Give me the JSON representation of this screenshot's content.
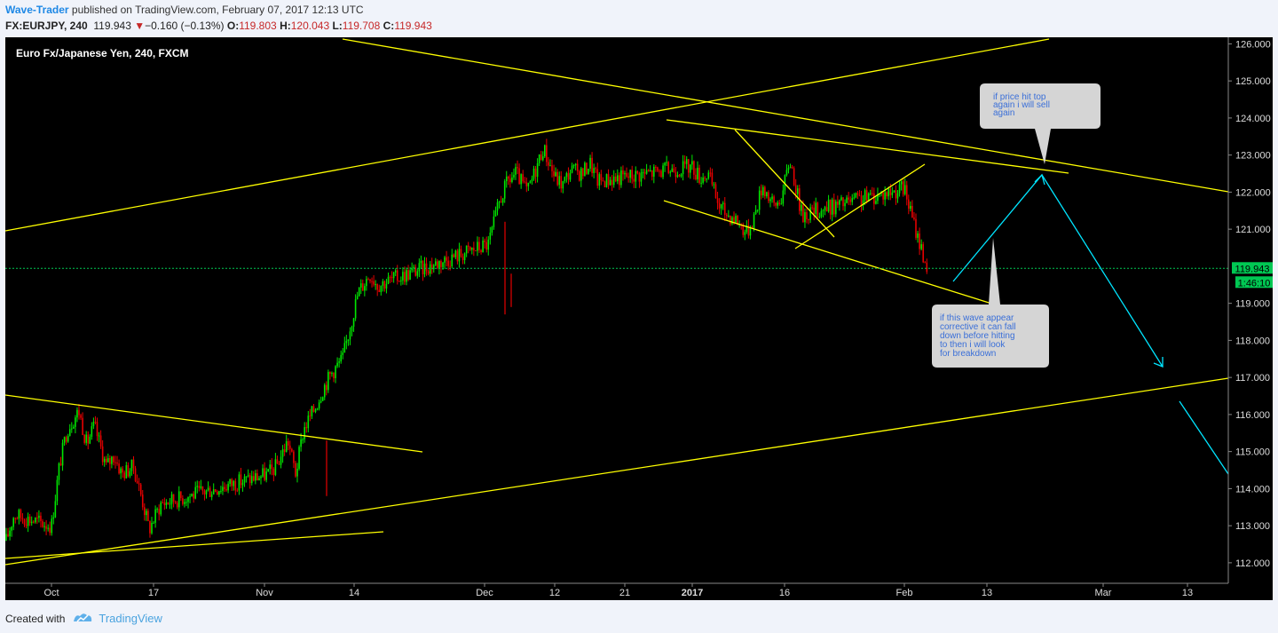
{
  "header": {
    "author": "Wave-Trader",
    "published_text": " published on TradingView.com, February 07, 2017 12:13 UTC",
    "symbol": "FX:EURJPY, 240",
    "last": "119.943",
    "change": "−0.160 (−0.13%)",
    "o_label": "O:",
    "o_value": "119.803",
    "h_label": "H:",
    "h_value": "120.043",
    "l_label": "L:",
    "l_value": "119.708",
    "c_label": "C:",
    "c_value": "119.943"
  },
  "chart_data": {
    "type": "candlestick",
    "title": "Euro Fx/Japanese Yen, 240, FXCM",
    "x_ticks": [
      "Oct",
      "17",
      "Nov",
      "14",
      "Dec",
      "12",
      "21",
      "2017",
      "16",
      "Feb",
      "13",
      "Mar",
      "13"
    ],
    "y_ticks": [
      "126.000",
      "125.000",
      "124.000",
      "123.000",
      "122.000",
      "121.000",
      "119.000",
      "118.000",
      "117.000",
      "116.000",
      "115.000",
      "114.000",
      "113.000",
      "112.000"
    ],
    "ylim": [
      111.7,
      126.1
    ],
    "last_price": 119.943,
    "last_price_label": "119.943",
    "countdown_label": "1:46:10",
    "price_path": [
      [
        "Sep 28",
        112.6
      ],
      [
        "Sep 30",
        113.3
      ],
      [
        "Oct 3",
        113.0
      ],
      [
        "Oct 5",
        114.6
      ],
      [
        "Oct 7",
        115.6
      ],
      [
        "Oct 10",
        116.1
      ],
      [
        "Oct 12",
        115.2
      ],
      [
        "Oct 14",
        115.7
      ],
      [
        "Oct 17",
        114.6
      ],
      [
        "Oct 19",
        114.9
      ],
      [
        "Oct 21",
        114.4
      ],
      [
        "Oct 24",
        114.6
      ],
      [
        "Oct 26",
        113.8
      ],
      [
        "Oct 28",
        112.9
      ],
      [
        "Oct 31",
        113.6
      ],
      [
        "Nov 2",
        114.4
      ],
      [
        "Nov 4",
        114.6
      ],
      [
        "Nov 7",
        115.3
      ],
      [
        "Nov 9",
        114.4
      ],
      [
        "Nov 11",
        115.6
      ],
      [
        "Nov 14",
        116.2
      ],
      [
        "Nov 16",
        116.7
      ],
      [
        "Nov 18",
        117.1
      ],
      [
        "Nov 21",
        117.5
      ],
      [
        "Nov 23",
        118.4
      ],
      [
        "Nov 25",
        119.3
      ],
      [
        "Nov 28",
        119.8
      ],
      [
        "Nov 30",
        119.5
      ],
      [
        "Dec 2",
        120.6
      ],
      [
        "Dec 5",
        121.8
      ],
      [
        "Dec 7",
        122.3
      ],
      [
        "Dec 9",
        122.5
      ],
      [
        "Dec 12",
        122.0
      ],
      [
        "Dec 14",
        122.6
      ],
      [
        "Dec 16",
        123.2
      ],
      [
        "Dec 19",
        122.4
      ],
      [
        "Dec 21",
        122.2
      ],
      [
        "Dec 23",
        122.6
      ],
      [
        "Dec 26",
        122.5
      ],
      [
        "Dec 28",
        122.8
      ],
      [
        "Dec 30",
        122.3
      ],
      [
        "Jan 2",
        122.7
      ],
      [
        "Jan 4",
        122.4
      ],
      [
        "Jan 6",
        122.5
      ],
      [
        "Jan 9",
        121.6
      ],
      [
        "Jan 11",
        121.4
      ],
      [
        "Jan 13",
        121.3
      ],
      [
        "Jan 16",
        120.9
      ],
      [
        "Jan 18",
        121.4
      ],
      [
        "Jan 20",
        122.2
      ],
      [
        "Jan 23",
        121.6
      ],
      [
        "Jan 25",
        121.9
      ],
      [
        "Jan 27",
        122.9
      ],
      [
        "Jan 30",
        121.4
      ],
      [
        "Feb 1",
        122.1
      ],
      [
        "Feb 3",
        121.3
      ],
      [
        "Feb 5",
        120.6
      ],
      [
        "Feb 7",
        119.9
      ]
    ],
    "annotations": {
      "callout_top": [
        "if price hit top",
        "again i will sell",
        "again"
      ],
      "callout_bottom": [
        "if this wave appear",
        "corrective it can fall",
        "down before hitting",
        "to then i will look",
        "for breakdown"
      ]
    },
    "colors": {
      "up": "#00e600",
      "down": "#e60000",
      "trendline": "#ffff00",
      "projection": "#00e5ff",
      "last_price": "#00c853",
      "callout_bg": "#d5d5d5",
      "callout_text": "#3a6fd8"
    }
  },
  "footer": {
    "created_with": "Created with",
    "brand": "TradingView"
  }
}
